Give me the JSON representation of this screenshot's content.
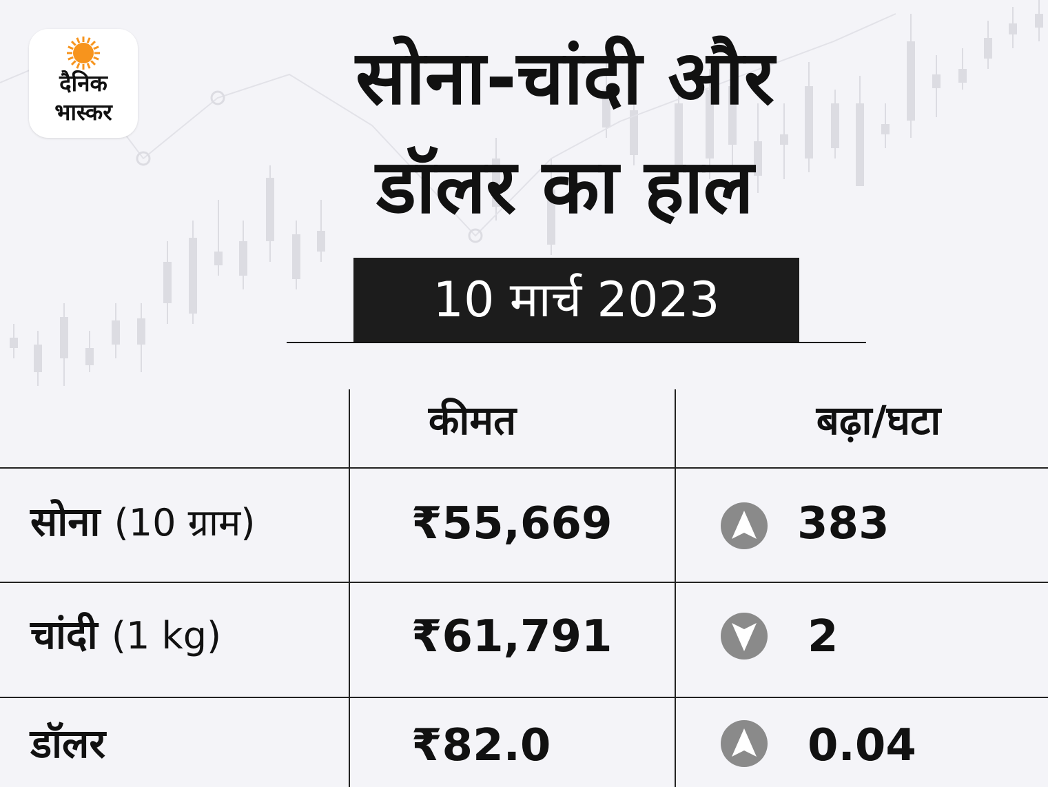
{
  "logo": {
    "line1": "दैनिक",
    "line2": "भास्कर",
    "sun_color": "#f7941d"
  },
  "title": {
    "line1": "सोना-चांदी और",
    "line2": "डॉलर का हाल"
  },
  "date": "10 मार्च 2023",
  "table": {
    "headers": {
      "price": "कीमत",
      "change": "बढ़ा/घटा"
    },
    "rows": [
      {
        "name": "सोना",
        "unit": "(10 ग्राम)",
        "price": "₹55,669",
        "direction": "up",
        "direction_icon": "up-arrow-icon",
        "change": "383"
      },
      {
        "name": "चांदी",
        "unit": "(1 kg)",
        "price": "₹61,791",
        "direction": "down",
        "direction_icon": "down-arrow-icon",
        "change": "2"
      },
      {
        "name": "डॉलर",
        "unit": "",
        "price": "₹82.0",
        "direction": "up",
        "direction_icon": "up-arrow-icon",
        "change": "0.04"
      }
    ]
  },
  "colors": {
    "background": "#f4f4f8",
    "date_box": "#1c1c1c",
    "arrow_circle": "#8a8a8a",
    "candles": "#dcdce2"
  }
}
